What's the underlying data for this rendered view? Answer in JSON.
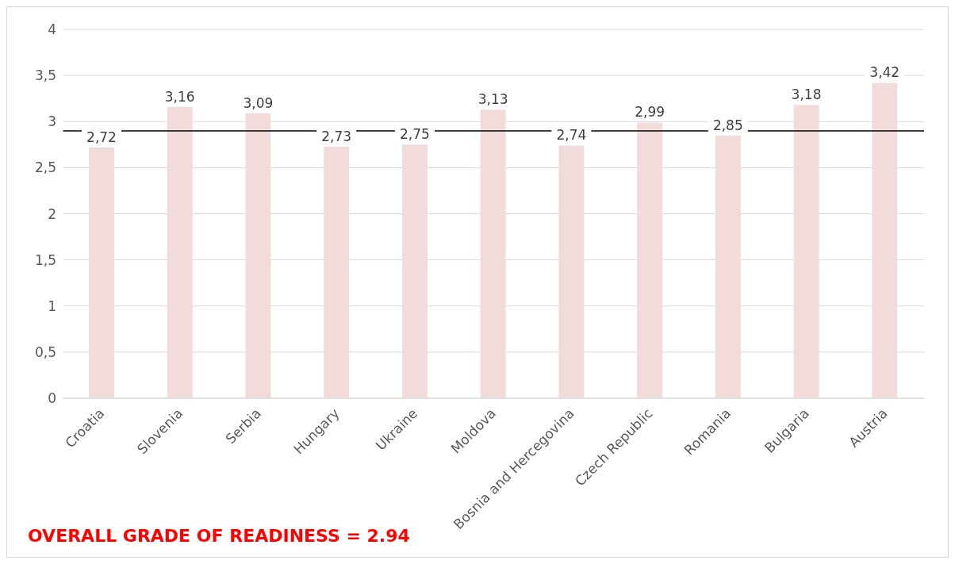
{
  "chart_data": {
    "type": "bar",
    "categories": [
      "Croatia",
      "Slovenia",
      "Serbia",
      "Hungary",
      "Ukraine",
      "Moldova",
      "Bosnia and Hercegovina",
      "Czech Republic",
      "Romania",
      "Bulgaria",
      "Austria"
    ],
    "values": [
      2.72,
      3.16,
      3.09,
      2.73,
      2.75,
      3.13,
      2.74,
      2.99,
      2.85,
      3.18,
      3.42
    ],
    "value_labels": [
      "2,72",
      "3,16",
      "3,09",
      "2,73",
      "2,75",
      "3,13",
      "2,74",
      "2,99",
      "2,85",
      "3,18",
      "3,42"
    ],
    "color": "#f2dcdb",
    "ylim": [
      0,
      4
    ],
    "yticks": [
      0,
      {
        "value": 0.5,
        "label": "0,5"
      },
      1,
      {
        "value": 1.5,
        "label": "1,5"
      },
      2,
      {
        "value": 2.5,
        "label": "2,5"
      },
      3,
      {
        "value": 3.5,
        "label": "3,5"
      },
      4
    ],
    "grid": "y",
    "ref_lines": [
      {
        "axis": "y",
        "value": 2.9,
        "color": "#000000"
      }
    ],
    "annotations": [
      "OVERALL GRADE OF READINESS = 2.94"
    ]
  }
}
